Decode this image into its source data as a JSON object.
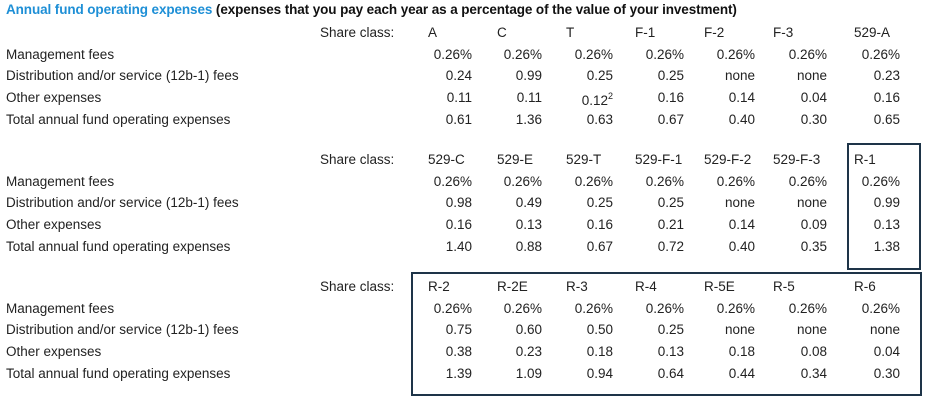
{
  "title": {
    "highlight": "Annual fund operating expenses",
    "rest": " (expenses that you pay each year as a percentage of the value of your investment)"
  },
  "colors": {
    "title_blue": "#1e8fd6",
    "box_border": "#1e3448",
    "text": "#222222"
  },
  "share_class_label": "Share class:",
  "row_labels": [
    "Management fees",
    "Distribution and/or service (12b-1) fees",
    "Other expenses",
    "Total annual fund operating expenses"
  ],
  "sections": [
    {
      "classes": [
        "A",
        "C",
        "T",
        "F-1",
        "F-2",
        "F-3",
        "529-A"
      ],
      "rows": [
        [
          "0.26%",
          "0.26%",
          "0.26%",
          "0.26%",
          "0.26%",
          "0.26%",
          "0.26%"
        ],
        [
          "0.24",
          "0.99",
          "0.25",
          "0.25",
          "none",
          "none",
          "0.23"
        ],
        [
          "0.11",
          "0.11",
          "0.12",
          "0.16",
          "0.14",
          "0.04",
          "0.16"
        ],
        [
          "0.61",
          "1.36",
          "0.63",
          "0.67",
          "0.40",
          "0.30",
          "0.65"
        ]
      ],
      "footnote": {
        "row": 2,
        "col": 2,
        "mark": "2"
      }
    },
    {
      "classes": [
        "529-C",
        "529-E",
        "529-T",
        "529-F-1",
        "529-F-2",
        "529-F-3",
        "R-1"
      ],
      "rows": [
        [
          "0.26%",
          "0.26%",
          "0.26%",
          "0.26%",
          "0.26%",
          "0.26%",
          "0.26%"
        ],
        [
          "0.98",
          "0.49",
          "0.25",
          "0.25",
          "none",
          "none",
          "0.99"
        ],
        [
          "0.16",
          "0.13",
          "0.16",
          "0.21",
          "0.14",
          "0.09",
          "0.13"
        ],
        [
          "1.40",
          "0.88",
          "0.67",
          "0.72",
          "0.40",
          "0.35",
          "1.38"
        ]
      ]
    },
    {
      "classes": [
        "R-2",
        "R-2E",
        "R-3",
        "R-4",
        "R-5E",
        "R-5",
        "R-6"
      ],
      "rows": [
        [
          "0.26%",
          "0.26%",
          "0.26%",
          "0.26%",
          "0.26%",
          "0.26%",
          "0.26%"
        ],
        [
          "0.75",
          "0.60",
          "0.50",
          "0.25",
          "none",
          "none",
          "none"
        ],
        [
          "0.38",
          "0.23",
          "0.18",
          "0.13",
          "0.18",
          "0.08",
          "0.04"
        ],
        [
          "1.39",
          "1.09",
          "0.94",
          "0.64",
          "0.44",
          "0.34",
          "0.30"
        ]
      ]
    }
  ]
}
